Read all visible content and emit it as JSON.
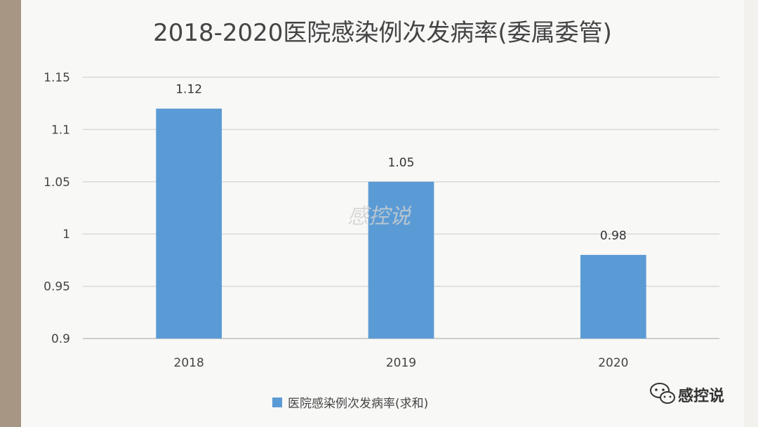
{
  "chart_data": {
    "type": "bar",
    "title": "2018-2020医院感染例次发病率(委属委管)",
    "categories": [
      "2018",
      "2019",
      "2020"
    ],
    "series": [
      {
        "name": "医院感染例次发病率(求和)",
        "values": [
          1.12,
          1.05,
          0.98
        ]
      }
    ],
    "data_labels": [
      "1.12",
      "1.05",
      "0.98"
    ],
    "ylim": [
      0.9,
      1.15
    ],
    "yticks": [
      0.9,
      0.95,
      1,
      1.05,
      1.1,
      1.15
    ],
    "ytick_labels": [
      "0.9",
      "0.95",
      "1",
      "1.05",
      "1.1",
      "1.15"
    ],
    "grid": true,
    "legend_position": "bottom",
    "bar_color": "#5b9bd5"
  },
  "watermark": "感控说",
  "brand": {
    "name": "感控说",
    "icon": "wechat-icon"
  }
}
